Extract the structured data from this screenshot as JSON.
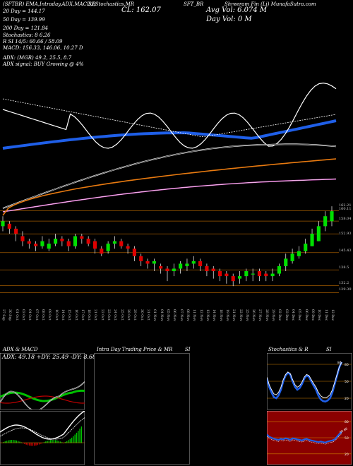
{
  "header": {
    "line1_left": "(SFTBR) EMA,Intraday,ADX,MACD,B",
    "line1_mid": "SI,Stochastics,MR",
    "line1_mid2": "SFT_BR",
    "line1_right": "Shreeram Fin (Li) MunafaSutra.com",
    "cl_label": "CL: 162.07",
    "avg_vol_label": "Avg Vol: 6.074  M",
    "day_vol_label": "Day Vol: 0   M",
    "ema20": "20   Day = 144.17",
    "ema50": "50   Day = 139.99",
    "ema200": "200   Day = 121.84",
    "stoch": "Stochastics: 8         6.26",
    "rsi": "R         SI 14/5: 60.66 / 58.09",
    "macd": "MACD: 156.33, 146.06, 10.27 D",
    "adx": "ADX:                        (MGR) 49.2, 25.5, 8.7",
    "adx_signal": "ADX   signal:                                  BUY Growing @ 4%"
  },
  "colors": {
    "ema_blue": "#1f5fe8",
    "ema_orange": "#e87a10",
    "ema_pink": "#e060d0",
    "up": "#00e000",
    "down": "#e00000",
    "level": "#a05a00"
  },
  "price_levels": [
    "162.21",
    "158.04",
    "152.93",
    "145.43",
    "138.5",
    "132.2",
    "129.39"
  ],
  "price_levels_extra": [
    "160.11"
  ],
  "x_labels": [
    "27 Sep",
    "30 Sep",
    "01 Oct",
    "03 Oct",
    "04 Oct",
    "07 Oct",
    "08 Oct",
    "09 Oct",
    "10 Oct",
    "14 Oct",
    "15 Oct",
    "16 Oct",
    "17 Oct",
    "18 Oct",
    "21 Oct",
    "22 Oct",
    "23 Oct",
    "24 Oct",
    "25 Oct",
    "28 Oct",
    "29 Oct",
    "30 Oct",
    "31 Oct",
    "01 Nov",
    "04 Nov",
    "05 Nov",
    "06 Nov",
    "07 Nov",
    "08 Nov",
    "11 Nov",
    "12 Nov",
    "13 Nov",
    "14 Nov",
    "18 Nov",
    "19 Nov",
    "21 Nov",
    "22 Nov",
    "25 Nov",
    "26 Nov",
    "27 Nov",
    "28 Nov",
    "29 Nov",
    "02 Dec",
    "03 Dec",
    "04 Dec",
    "05 Dec",
    "06 Dec",
    "09 Dec",
    "10 Dec",
    "11 Dec",
    "12 Dec"
  ],
  "panels": {
    "adx_macd_title": "ADX  & MACD",
    "adx_readout": "ADX: 49.18  +DY: 25.49  -DY: 8.68",
    "intraday_title": "Intra  Day Trading Price  & MR",
    "intraday_title2": "SI",
    "stoch_title": "Stochastics & R",
    "stoch_title2": "SI",
    "stoch_ticks": [
      "80",
      "50",
      "20"
    ],
    "rsi_ticks": [
      "80",
      "50",
      "20"
    ],
    "rsi_marker": "60.66",
    "stoch_marker": "84"
  },
  "chart_data": [
    {
      "type": "candlestick",
      "title": "SFT_BR",
      "x": [
        "27 Sep",
        "30 Sep",
        "01 Oct",
        "03 Oct",
        "04 Oct",
        "07 Oct",
        "08 Oct",
        "09 Oct",
        "10 Oct",
        "14 Oct",
        "15 Oct",
        "16 Oct",
        "17 Oct",
        "18 Oct",
        "21 Oct",
        "22 Oct",
        "23 Oct",
        "24 Oct",
        "25 Oct",
        "28 Oct",
        "29 Oct",
        "30 Oct",
        "31 Oct",
        "01 Nov",
        "04 Nov",
        "05 Nov",
        "06 Nov",
        "07 Nov",
        "08 Nov",
        "11 Nov",
        "12 Nov",
        "13 Nov",
        "14 Nov",
        "18 Nov",
        "19 Nov",
        "21 Nov",
        "22 Nov",
        "25 Nov",
        "26 Nov",
        "27 Nov",
        "28 Nov",
        "29 Nov",
        "02 Dec",
        "03 Dec",
        "04 Dec",
        "05 Dec",
        "06 Dec",
        "09 Dec",
        "10 Dec",
        "11 Dec",
        "12 Dec"
      ],
      "open": [
        156,
        157,
        155,
        152,
        150,
        149,
        148,
        147,
        149,
        151,
        150,
        148,
        152,
        151,
        150,
        147,
        146,
        149,
        150,
        148,
        147,
        144,
        142,
        141,
        140,
        139,
        138,
        139,
        140,
        141,
        142,
        140,
        139,
        138,
        137,
        136,
        135,
        136,
        137,
        138,
        137,
        136,
        137,
        140,
        142,
        144,
        146,
        148,
        150,
        156,
        158
      ],
      "close": [
        158,
        155,
        153,
        150,
        149,
        148,
        150,
        149,
        151,
        150,
        148,
        152,
        151,
        149,
        147,
        145,
        149,
        150,
        148,
        147,
        144,
        142,
        141,
        142,
        139,
        138,
        139,
        141,
        141,
        142,
        140,
        138,
        138,
        136,
        136,
        134,
        136,
        138,
        137,
        136,
        136,
        137,
        140,
        143,
        145,
        146,
        149,
        153,
        156,
        160,
        162
      ],
      "high": [
        160,
        158,
        156,
        154,
        151,
        150,
        152,
        151,
        153,
        152,
        151,
        153,
        153,
        152,
        151,
        148,
        150,
        152,
        151,
        149,
        148,
        145,
        143,
        143,
        141,
        140,
        141,
        142,
        143,
        144,
        143,
        141,
        140,
        139,
        138,
        137,
        138,
        139,
        139,
        139,
        138,
        139,
        141,
        145,
        147,
        148,
        151,
        155,
        158,
        162,
        164
      ],
      "low": [
        154,
        153,
        150,
        148,
        147,
        146,
        147,
        146,
        148,
        148,
        146,
        147,
        149,
        148,
        145,
        144,
        145,
        147,
        147,
        145,
        142,
        140,
        139,
        138,
        137,
        134,
        136,
        137,
        138,
        139,
        138,
        136,
        135,
        134,
        133,
        132,
        133,
        134,
        134,
        134,
        134,
        134,
        136,
        138,
        141,
        143,
        145,
        148,
        150,
        154,
        156
      ],
      "ema_20_last": 144.17,
      "ema_50_last": 139.99,
      "ema_200_last": 121.84,
      "ylim": [
        125,
        166
      ]
    },
    {
      "type": "line",
      "title": "Stochastics & RSI",
      "series": [
        {
          "name": "Stochastics",
          "values": [
            55,
            40,
            30,
            22,
            20,
            25,
            35,
            50,
            60,
            65,
            62,
            50,
            40,
            35,
            38,
            45,
            55,
            60,
            58,
            50,
            42,
            35,
            25,
            18,
            15,
            14,
            16,
            20,
            30,
            45,
            60,
            75,
            84
          ]
        },
        {
          "name": "RSI",
          "values": [
            56,
            52,
            50,
            48,
            47,
            46,
            48,
            47,
            49,
            48,
            46,
            49,
            48,
            47,
            46,
            45,
            47,
            48,
            46,
            45,
            44,
            43,
            42,
            43,
            42,
            41,
            43,
            44,
            45,
            47,
            52,
            57,
            60.66
          ]
        }
      ],
      "ylim": [
        0,
        100
      ]
    }
  ]
}
